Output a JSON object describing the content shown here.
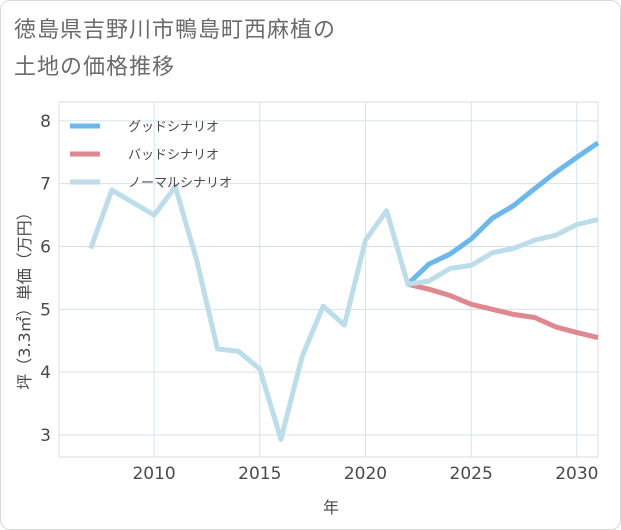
{
  "title": {
    "line1": "徳島県吉野川市鴨島町西麻植の",
    "line2": "土地の価格推移"
  },
  "chart_data": {
    "type": "line",
    "xlabel": "年",
    "ylabel": "坪（3.3㎡）単価（万円）",
    "xlim": [
      2005.5,
      2031
    ],
    "ylim": [
      2.65,
      8.3
    ],
    "xticks": [
      2010,
      2015,
      2020,
      2025,
      2030
    ],
    "yticks": [
      3,
      4,
      5,
      6,
      7,
      8
    ],
    "grid": true,
    "legend_position": "top-left",
    "series": [
      {
        "name": "グッドシナリオ",
        "color": "#6cb8ea",
        "x": [
          2022,
          2023,
          2024,
          2025,
          2026,
          2027,
          2028,
          2029,
          2030,
          2031
        ],
        "values": [
          5.4,
          5.72,
          5.88,
          6.12,
          6.45,
          6.65,
          6.92,
          7.18,
          7.42,
          7.65
        ]
      },
      {
        "name": "バッドシナリオ",
        "color": "#e0888f",
        "x": [
          2022,
          2023,
          2024,
          2025,
          2026,
          2027,
          2028,
          2029,
          2030,
          2031
        ],
        "values": [
          5.4,
          5.32,
          5.22,
          5.08,
          5.0,
          4.92,
          4.87,
          4.72,
          4.63,
          4.55
        ]
      },
      {
        "name": "ノーマルシナリオ",
        "color": "#bcdde9",
        "x": [
          2007,
          2008,
          2009,
          2010,
          2011,
          2012,
          2013,
          2014,
          2015,
          2016,
          2017,
          2018,
          2019,
          2020,
          2021,
          2022,
          2023,
          2024,
          2025,
          2026,
          2027,
          2028,
          2029,
          2030,
          2031
        ],
        "values": [
          5.97,
          6.9,
          6.7,
          6.5,
          6.95,
          5.8,
          4.37,
          4.33,
          4.05,
          2.93,
          4.25,
          5.05,
          4.75,
          6.1,
          6.57,
          5.4,
          5.45,
          5.65,
          5.7,
          5.9,
          5.97,
          6.1,
          6.18,
          6.35,
          6.43
        ]
      }
    ]
  }
}
